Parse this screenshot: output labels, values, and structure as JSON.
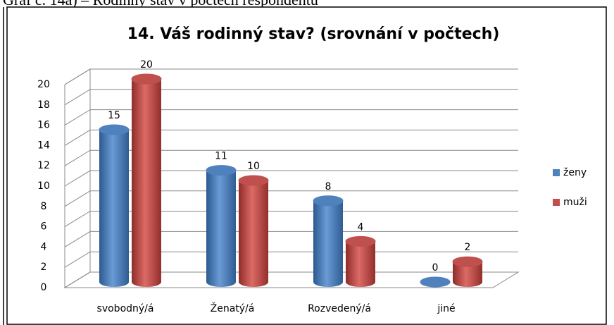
{
  "caption": "Graf č. 14a) – Rodinný stav v počtech respondentů",
  "chart_data": {
    "type": "bar3d",
    "title": "14. Váš rodinný stav? (srovnání v počtech)",
    "categories": [
      "svobodný/á",
      "Ženatý/á",
      "Rozvedený/á",
      "jiné"
    ],
    "series": [
      {
        "name": "ženy",
        "color": "#4f81bd",
        "values": [
          15,
          11,
          8,
          0
        ]
      },
      {
        "name": "muži",
        "color": "#c0504d",
        "values": [
          20,
          10,
          4,
          2
        ]
      }
    ],
    "ylim": [
      0,
      20
    ],
    "yticks": [
      0,
      2,
      4,
      6,
      8,
      10,
      12,
      14,
      16,
      18,
      20
    ],
    "grid": true,
    "legend": "right"
  }
}
